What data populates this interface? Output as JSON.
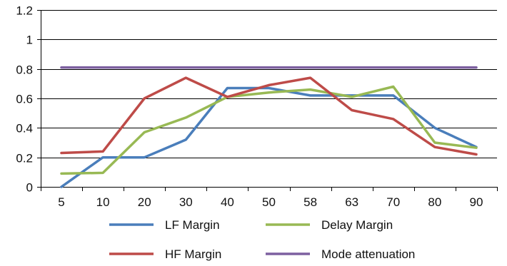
{
  "chart_data": {
    "type": "line",
    "categories": [
      "5",
      "10",
      "20",
      "30",
      "40",
      "50",
      "58",
      "63",
      "70",
      "80",
      "90"
    ],
    "ylim": [
      0,
      1.2
    ],
    "y_ticks": [
      "0",
      "0.2",
      "0.4",
      "0.6",
      "0.8",
      "1",
      "1.2"
    ],
    "grid": "horizontal",
    "legend_position": "bottom",
    "series": [
      {
        "name": "LF Margin",
        "color": "#4a7ebb",
        "values": [
          0.0,
          0.2,
          0.2,
          0.32,
          0.67,
          0.67,
          0.62,
          0.62,
          0.62,
          0.4,
          0.27
        ]
      },
      {
        "name": "Delay Margin",
        "color": "#98b954",
        "values": [
          0.09,
          0.095,
          0.37,
          0.47,
          0.61,
          0.64,
          0.66,
          0.61,
          0.68,
          0.3,
          0.265
        ]
      },
      {
        "name": "HF Margin",
        "color": "#be4b48",
        "values": [
          0.23,
          0.24,
          0.6,
          0.74,
          0.61,
          0.69,
          0.74,
          0.52,
          0.46,
          0.27,
          0.22
        ]
      },
      {
        "name": "Mode attenuation",
        "color": "#7d60a0",
        "values": [
          0.81,
          0.81,
          0.81,
          0.81,
          0.81,
          0.81,
          0.81,
          0.81,
          0.81,
          0.81,
          0.81
        ]
      }
    ]
  }
}
